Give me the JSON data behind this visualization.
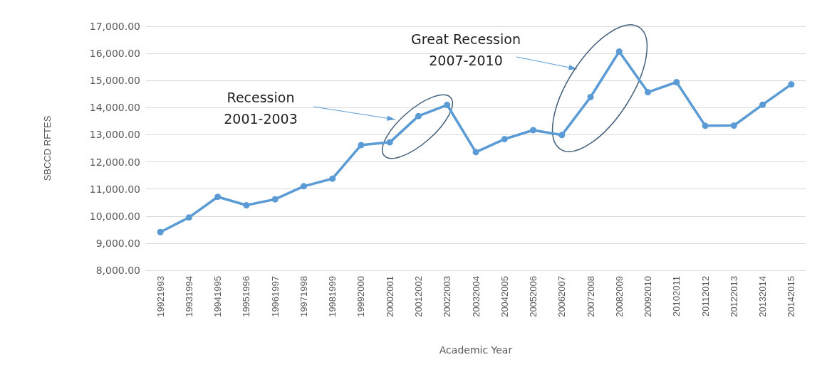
{
  "chart_data": {
    "type": "line",
    "xlabel": "Academic Year",
    "ylabel": "SBCCD RFTES",
    "categories": [
      "19921993",
      "19931994",
      "19941995",
      "19951996",
      "19961997",
      "19971998",
      "19981999",
      "19992000",
      "20002001",
      "20012002",
      "20022003",
      "20032004",
      "20042005",
      "20052006",
      "20062007",
      "20072008",
      "20082009",
      "20092010",
      "20102011",
      "20112012",
      "20122013",
      "20132014",
      "20142015"
    ],
    "values": [
      9410,
      9950,
      10710,
      10400,
      10620,
      11100,
      11380,
      12620,
      12720,
      13690,
      14100,
      12360,
      12840,
      13170,
      12990,
      14390,
      16070,
      14570,
      14940,
      13330,
      13340,
      14110,
      14860
    ],
    "color": "#5b9bd5",
    "marker": "circle",
    "line_style": "solid",
    "grid": "y",
    "ylim": [
      8000,
      17000
    ],
    "yticks": [
      {
        "value": 8000,
        "label": "8,000.00"
      },
      {
        "value": 9000,
        "label": "9,000.00"
      },
      {
        "value": 10000,
        "label": "10,000.00"
      },
      {
        "value": 11000,
        "label": "11,000.00"
      },
      {
        "value": 12000,
        "label": "12,000.00"
      },
      {
        "value": 13000,
        "label": "13,000.00"
      },
      {
        "value": 14000,
        "label": "14,000.00"
      },
      {
        "value": 15000,
        "label": "15,000.00"
      },
      {
        "value": 16000,
        "label": "16,000.00"
      },
      {
        "value": 17000,
        "label": "17,000.00"
      }
    ],
    "annotations": [
      "Recession\n2001-2003",
      "Great Recession\n2007-2010"
    ]
  }
}
